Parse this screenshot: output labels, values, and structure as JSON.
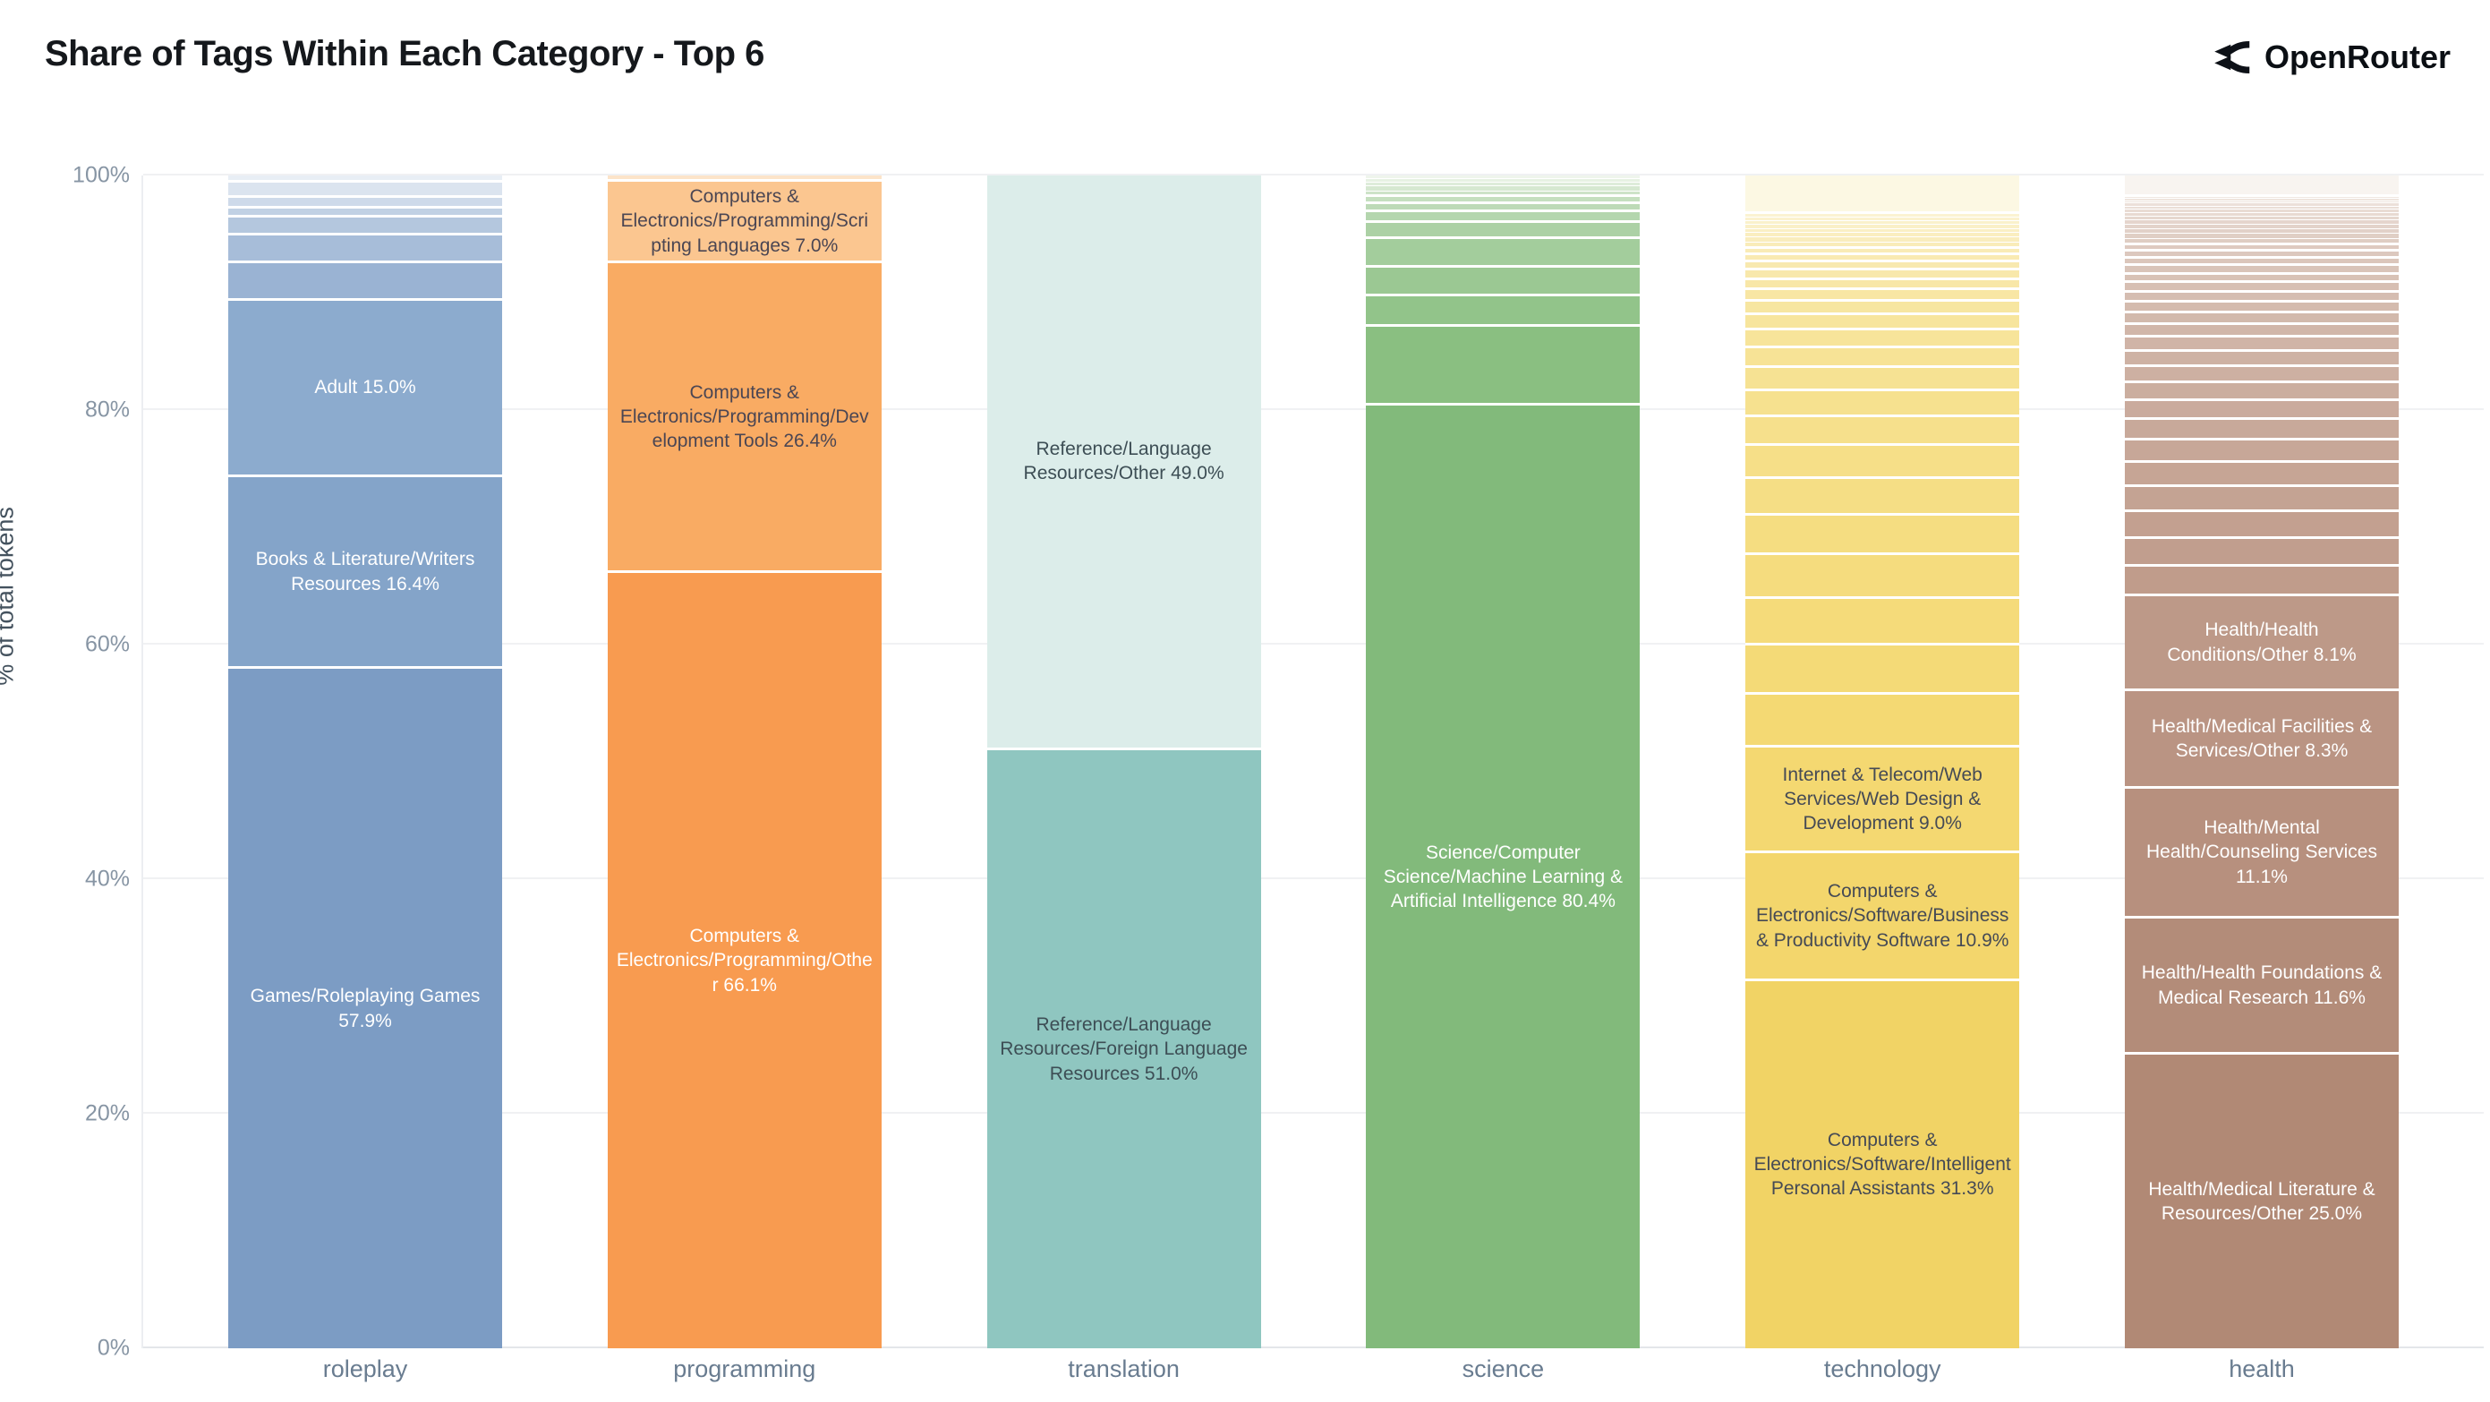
{
  "header": {
    "title": "Share of Tags Within Each Category - Top 6",
    "brand": "OpenRouter"
  },
  "colors": {
    "background": "#ffffff",
    "grid": "#f0f1f3",
    "axis_text": "#8795a4",
    "dark_label": "#47505e",
    "light_label": "#ffffff"
  },
  "chart_data": {
    "type": "bar",
    "subtype": "stacked-percent-vertical",
    "title": "Share of Tags Within Each Category - Top 6",
    "xlabel": "",
    "ylabel": "% of total tokens",
    "ylim": [
      0,
      100
    ],
    "grid": true,
    "yticks": [
      {
        "pos": 0,
        "label": "0%"
      },
      {
        "pos": 20,
        "label": "20%"
      },
      {
        "pos": 40,
        "label": "40%"
      },
      {
        "pos": 60,
        "label": "60%"
      },
      {
        "pos": 80,
        "label": "80%"
      },
      {
        "pos": 100,
        "label": "100%"
      }
    ],
    "categories": [
      "roleplay",
      "programming",
      "translation",
      "science",
      "technology",
      "health"
    ],
    "bars": [
      {
        "category": "roleplay",
        "base_color": "#7c9cc4",
        "segments": [
          {
            "strip_group": {
              "values": [
                0.6,
                1.3,
                0.9,
                0.8,
                1.5,
                2.4,
                3.2
              ],
              "from": "#e8eef5",
              "to": "#9ab3d3"
            }
          },
          {
            "pct": 15.0,
            "label": "Adult 15.0%",
            "color": "#8cabce",
            "text_color": "#ffffff"
          },
          {
            "pct": 16.4,
            "label": "Books & Literature/Writers Resources 16.4%",
            "color": "#84a4c9",
            "text_color": "#ffffff"
          },
          {
            "pct": 57.9,
            "label": "Games/Roleplaying Games 57.9%",
            "color": "#7c9cc4",
            "text_color": "#ffffff"
          }
        ]
      },
      {
        "category": "programming",
        "base_color": "#f89b50",
        "segments": [
          {
            "strip_group": {
              "values": [
                0.5
              ],
              "from": "#fce4c9",
              "to": "#fce4c9"
            }
          },
          {
            "pct": 7.0,
            "label": "Computers & Electronics/Programming/Scripting Languages 7.0%",
            "color": "#fbc690",
            "text_color": "#4b4653"
          },
          {
            "pct": 26.4,
            "label": "Computers & Electronics/Programming/Development Tools 26.4%",
            "color": "#f9ab63",
            "text_color": "#4b4653"
          },
          {
            "pct": 66.1,
            "label": "Computers & Electronics/Programming/Other 66.1%",
            "color": "#f89b50",
            "text_color": "#ffffff"
          }
        ]
      },
      {
        "category": "translation",
        "base_color": "#8fc6c0",
        "segments": [
          {
            "pct": 49.0,
            "label": "Reference/Language Resources/Other 49.0%",
            "color": "#dcedea",
            "text_color": "#3d4e55"
          },
          {
            "pct": 51.0,
            "label": "Reference/Language Resources/Foreign Language Resources 51.0%",
            "color": "#8fc6c0",
            "text_color": "#3d4e55"
          }
        ]
      },
      {
        "category": "science",
        "base_color": "#82ba7b",
        "segments": [
          {
            "strip_group": {
              "values": [
                0.3,
                0.3,
                0.35,
                0.4,
                0.5,
                0.6,
                0.7,
                0.9,
                1.4,
                2.4,
                2.5,
                2.6,
                6.7
              ],
              "from": "#eff5ec",
              "to": "#8abf81"
            }
          },
          {
            "pct": 80.4,
            "label": "Science/Computer Science/Machine Learning & Artificial Intelligence 80.4%",
            "color": "#82ba7b",
            "text_color": "#ffffff"
          }
        ]
      },
      {
        "category": "technology",
        "base_color": "#f1d365",
        "segments": [
          {
            "strip_group": {
              "values": [
                3.3
              ],
              "from": "#fcf8e3",
              "to": "#fcf8e3"
            }
          },
          {
            "strip_group": {
              "values": [
                0.3,
                0.3,
                0.3,
                0.35,
                0.35,
                0.4,
                0.45,
                0.5,
                0.55,
                0.6,
                0.7,
                0.8,
                0.9,
                1.0,
                1.15,
                1.3,
                1.5,
                1.7,
                1.95,
                2.2,
                2.5,
                2.8,
                3.1,
                3.4,
                3.7,
                4.0,
                4.2,
                4.5
              ],
              "from": "#fbf3d2",
              "to": "#f4d973"
            }
          },
          {
            "pct": 9.0,
            "label": "Internet & Telecom/Web Services/Web Design & Development 9.0%",
            "color": "#f4d871",
            "text_color": "#454a55"
          },
          {
            "pct": 10.9,
            "label": "Computers & Electronics/Software/Business & Productivity Software 10.9%",
            "color": "#f3d66c",
            "text_color": "#454a55"
          },
          {
            "pct": 31.3,
            "label": "Computers & Electronics/Software/Intelligent Personal Assistants 31.3%",
            "color": "#f1d365",
            "text_color": "#454a55"
          }
        ]
      },
      {
        "category": "health",
        "base_color": "#b18975",
        "segments": [
          {
            "strip_group": {
              "values": [
                1.8
              ],
              "from": "#f8f4f0",
              "to": "#f8f4f0"
            }
          },
          {
            "strip_group": {
              "values": [
                0.2,
                0.2,
                0.2,
                0.25,
                0.25,
                0.3,
                0.3,
                0.35,
                0.35,
                0.4,
                0.4,
                0.45,
                0.5,
                0.55,
                0.6,
                0.65,
                0.7,
                0.75,
                0.8,
                0.85,
                0.9,
                1.0,
                1.1,
                1.2,
                1.3,
                1.4,
                1.5,
                1.6,
                1.75,
                1.9,
                2.05,
                2.2,
                2.3,
                2.35,
                2.5
              ],
              "from": "#f0e7e1",
              "to": "#c09c8b"
            }
          },
          {
            "pct": 8.1,
            "label": "Health/Health Conditions/Other 8.1%",
            "color": "#bd9988",
            "text_color": "#ffffff"
          },
          {
            "pct": 8.3,
            "label": "Health/Medical Facilities & Services/Other 8.3%",
            "color": "#ba9483",
            "text_color": "#ffffff"
          },
          {
            "pct": 11.1,
            "label": "Health/Mental Health/Counseling Services 11.1%",
            "color": "#b7907e",
            "text_color": "#ffffff"
          },
          {
            "pct": 11.6,
            "label": "Health/Health Foundations & Medical Research 11.6%",
            "color": "#b38c79",
            "text_color": "#ffffff"
          },
          {
            "pct": 25.0,
            "label": "Health/Medical Literature & Resources/Other 25.0%",
            "color": "#b18975",
            "text_color": "#ffffff"
          }
        ]
      }
    ]
  }
}
